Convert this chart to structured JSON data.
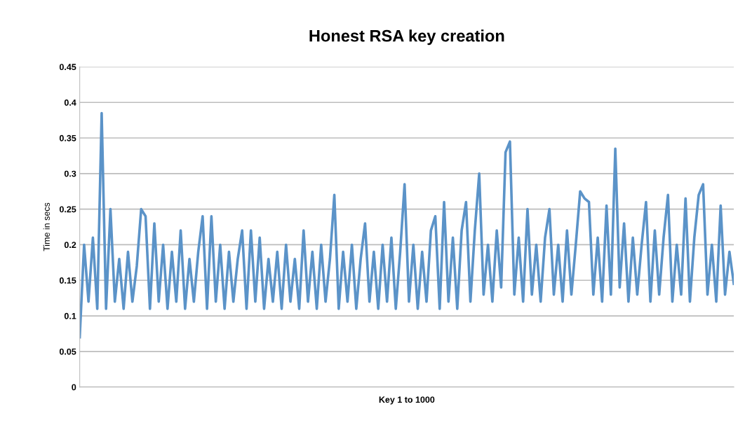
{
  "chart_data": {
    "type": "line",
    "title": "Honest RSA key creation",
    "xlabel": "Key 1 to 1000",
    "ylabel": "Time in secs",
    "categories": [
      null,
      null,
      null,
      null,
      null,
      null,
      null,
      null,
      null,
      null,
      null,
      null,
      null,
      null,
      null,
      null,
      null,
      null,
      null,
      null,
      null,
      null,
      null,
      null,
      null,
      null,
      null,
      null,
      null,
      null,
      null,
      null,
      null,
      null,
      null,
      null,
      null,
      null,
      null,
      null,
      null,
      null,
      null,
      null,
      null,
      null,
      null,
      null,
      null,
      null,
      null,
      null,
      null,
      null,
      null,
      null,
      null,
      null,
      null,
      null,
      null,
      null,
      null,
      null,
      null,
      null,
      null,
      null,
      null,
      null,
      null,
      null,
      null,
      null,
      null,
      null,
      null,
      null,
      null,
      null,
      null,
      null,
      null,
      null,
      null,
      null,
      null,
      null,
      null,
      null,
      null,
      null,
      null,
      null,
      null,
      null,
      null,
      null,
      null,
      null,
      null,
      null,
      null,
      null,
      null,
      null,
      null,
      null,
      null,
      null,
      null,
      null,
      null,
      null,
      null,
      null,
      null,
      null,
      null,
      null,
      null,
      null,
      null,
      null,
      null,
      null,
      null,
      null,
      null,
      null,
      null,
      null,
      null,
      null,
      null,
      null,
      null,
      null,
      null,
      null,
      null,
      null,
      null,
      null,
      null,
      null,
      null,
      null,
      null,
      null
    ],
    "series": [
      {
        "color": "#5b93c8",
        "values": [
          0.07,
          0.2,
          0.12,
          0.21,
          0.11,
          0.385,
          0.11,
          0.25,
          0.12,
          0.18,
          0.11,
          0.19,
          0.12,
          0.17,
          0.25,
          0.24,
          0.11,
          0.23,
          0.12,
          0.2,
          0.11,
          0.19,
          0.12,
          0.22,
          0.11,
          0.18,
          0.12,
          0.19,
          0.24,
          0.11,
          0.24,
          0.12,
          0.2,
          0.11,
          0.19,
          0.12,
          0.18,
          0.22,
          0.11,
          0.22,
          0.12,
          0.21,
          0.11,
          0.18,
          0.12,
          0.19,
          0.11,
          0.2,
          0.12,
          0.18,
          0.11,
          0.22,
          0.12,
          0.19,
          0.11,
          0.2,
          0.12,
          0.18,
          0.27,
          0.11,
          0.19,
          0.12,
          0.2,
          0.11,
          0.18,
          0.23,
          0.12,
          0.19,
          0.11,
          0.2,
          0.12,
          0.21,
          0.11,
          0.19,
          0.285,
          0.12,
          0.2,
          0.11,
          0.19,
          0.12,
          0.22,
          0.24,
          0.11,
          0.26,
          0.12,
          0.21,
          0.11,
          0.22,
          0.26,
          0.12,
          0.22,
          0.3,
          0.13,
          0.2,
          0.12,
          0.22,
          0.14,
          0.33,
          0.345,
          0.13,
          0.21,
          0.12,
          0.25,
          0.13,
          0.2,
          0.12,
          0.21,
          0.25,
          0.13,
          0.2,
          0.12,
          0.22,
          0.13,
          0.2,
          0.275,
          0.265,
          0.26,
          0.13,
          0.21,
          0.12,
          0.255,
          0.13,
          0.335,
          0.14,
          0.23,
          0.12,
          0.21,
          0.13,
          0.2,
          0.26,
          0.12,
          0.22,
          0.13,
          0.21,
          0.27,
          0.12,
          0.2,
          0.13,
          0.265,
          0.12,
          0.21,
          0.27,
          0.285,
          0.13,
          0.2,
          0.12,
          0.255,
          0.13,
          0.19,
          0.145
        ]
      }
    ],
    "ylim": [
      0,
      0.45
    ],
    "yticks": [
      0,
      0.05,
      0.1,
      0.15,
      0.2,
      0.25,
      0.3,
      0.35,
      0.4,
      0.45
    ],
    "grid": "y",
    "marker": "none",
    "line_style": "solid"
  }
}
